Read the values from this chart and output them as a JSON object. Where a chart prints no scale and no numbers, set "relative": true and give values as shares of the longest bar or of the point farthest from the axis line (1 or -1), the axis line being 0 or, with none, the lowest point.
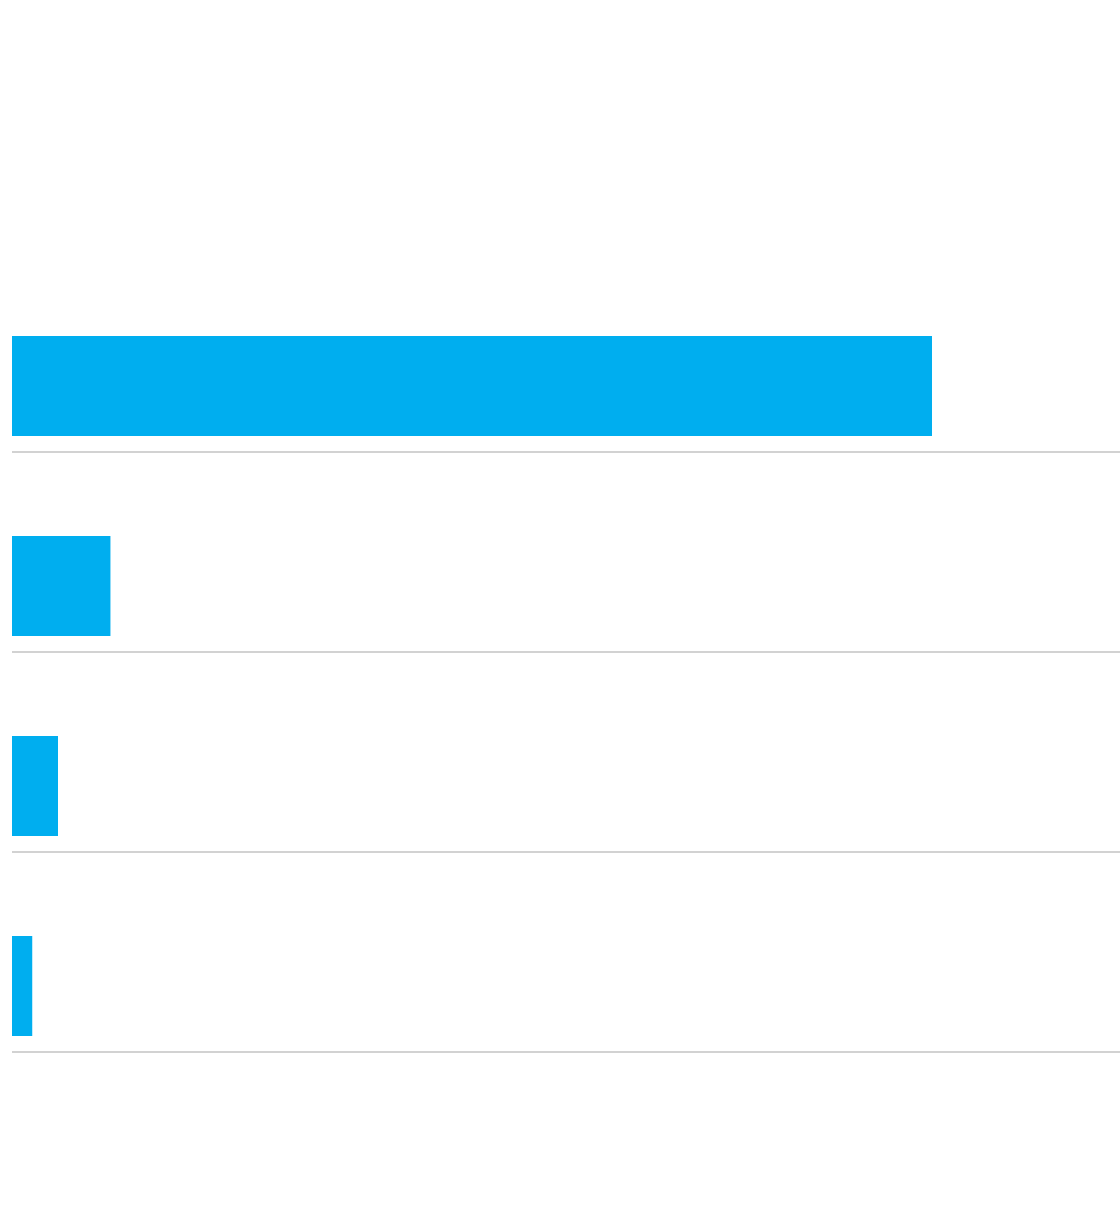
{
  "chart_data": {
    "type": "bar",
    "orientation": "horizontal",
    "relative": true,
    "categories": [
      null,
      null,
      null,
      null
    ],
    "values": [
      1,
      0.107,
      0.05,
      0.022
    ],
    "color": "#00aeef",
    "grid": "y"
  }
}
